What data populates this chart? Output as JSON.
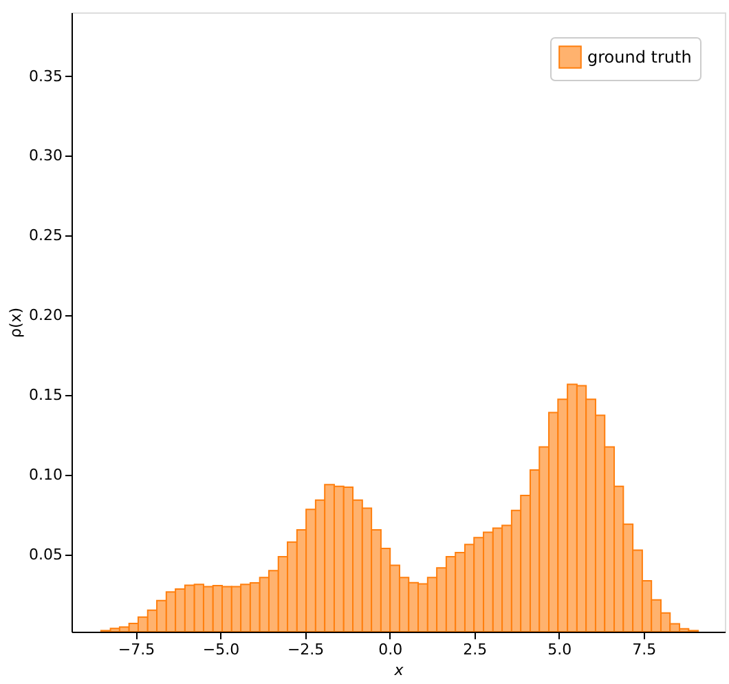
{
  "chart_data": {
    "type": "histogram",
    "xlabel": "x",
    "ylabel": "ρ(x)",
    "bins": [
      -8.53,
      -8.25,
      -7.98,
      -7.7,
      -7.43,
      -7.15,
      -6.88,
      -6.6,
      -6.33,
      -6.05,
      -5.77,
      -5.5,
      -5.22,
      -4.95,
      -4.67,
      -4.4,
      -4.12,
      -3.84,
      -3.57,
      -3.29,
      -3.02,
      -2.74,
      -2.47,
      -2.19,
      -1.92,
      -1.64,
      -1.36,
      -1.09,
      -0.81,
      -0.54,
      -0.26,
      0.01,
      0.29,
      0.56,
      0.84,
      1.12,
      1.39,
      1.67,
      1.94,
      2.22,
      2.49,
      2.77,
      3.05,
      3.32,
      3.6,
      3.87,
      4.15,
      4.42,
      4.7,
      4.97,
      5.25,
      5.53,
      5.8,
      6.08,
      6.35,
      6.63,
      6.9,
      7.18,
      7.46,
      7.73,
      8.01,
      8.28,
      8.56,
      8.83,
      9.11
    ],
    "series": [
      {
        "name": "ground truth",
        "color": "#ffb26e",
        "values": [
          0.0022,
          0.0036,
          0.0044,
          0.0067,
          0.0107,
          0.015,
          0.021,
          0.0264,
          0.0283,
          0.0306,
          0.0312,
          0.0298,
          0.0304,
          0.0298,
          0.0298,
          0.0312,
          0.0321,
          0.0355,
          0.0398,
          0.0485,
          0.0577,
          0.0654,
          0.0782,
          0.0841,
          0.0938,
          0.0927,
          0.0921,
          0.0841,
          0.079,
          0.0654,
          0.0537,
          0.0432,
          0.0355,
          0.0323,
          0.0315,
          0.0355,
          0.0415,
          0.0486,
          0.0511,
          0.0562,
          0.0605,
          0.0639,
          0.0665,
          0.0682,
          0.0776,
          0.087,
          0.1029,
          0.1174,
          0.139,
          0.1473,
          0.1567,
          0.1558,
          0.1473,
          0.1373,
          0.1174,
          0.0927,
          0.069,
          0.0526,
          0.0334,
          0.0215,
          0.0133,
          0.0065,
          0.0033,
          0.0022
        ]
      }
    ],
    "xlim": [
      -9.4,
      9.9
    ],
    "ylim": [
      0.0015,
      0.39
    ],
    "xticks": [
      -7.5,
      {
        "value": -5,
        "label": "−5.0"
      },
      -2.5,
      {
        "value": 0,
        "label": "0.0"
      },
      2.5,
      {
        "value": 5,
        "label": "5.0"
      },
      7.5
    ],
    "yticks": [
      0.05,
      {
        "value": 0.1,
        "label": "0.10"
      },
      0.15,
      {
        "value": 0.2,
        "label": "0.20"
      },
      0.25,
      {
        "value": 0.3,
        "label": "0.30"
      },
      0.35
    ],
    "legend": "top right",
    "grid": false
  }
}
